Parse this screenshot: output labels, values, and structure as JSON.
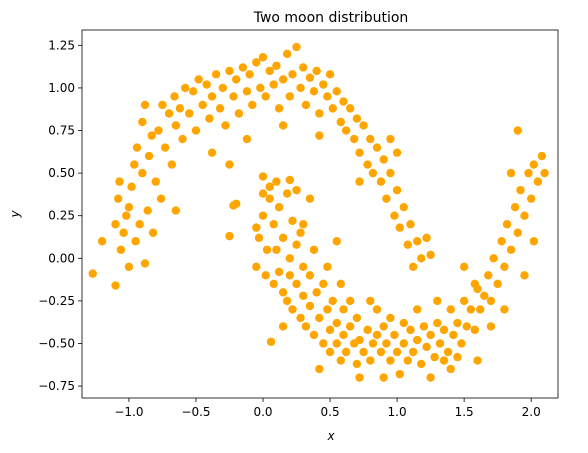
{
  "chart_data": {
    "type": "scatter",
    "title": "Two moon distribution",
    "xlabel": "x",
    "ylabel": "y",
    "xlim": [
      -1.35,
      2.2
    ],
    "ylim": [
      -0.82,
      1.34
    ],
    "xticks": [
      -1.0,
      -0.5,
      0.0,
      0.5,
      1.0,
      1.5,
      2.0
    ],
    "xtick_labels": [
      "−1.0",
      "−0.5",
      "0.0",
      "0.5",
      "1.0",
      "1.5",
      "2.0"
    ],
    "yticks": [
      -0.75,
      -0.5,
      -0.25,
      0.0,
      0.25,
      0.5,
      0.75,
      1.0,
      1.25
    ],
    "ytick_labels": [
      "−0.75",
      "−0.50",
      "−0.25",
      "0.00",
      "0.25",
      "0.50",
      "0.75",
      "1.00",
      "1.25"
    ],
    "grid": false,
    "point_color": "#ffa500",
    "series": [
      {
        "points": [
          [
            -1.27,
            -0.09
          ],
          [
            -1.2,
            0.1
          ],
          [
            -1.1,
            -0.16
          ],
          [
            -1.1,
            0.2
          ],
          [
            -1.08,
            0.35
          ],
          [
            -1.07,
            0.45
          ],
          [
            -1.06,
            0.05
          ],
          [
            -1.04,
            0.15
          ],
          [
            -1.02,
            0.25
          ],
          [
            -1.0,
            -0.05
          ],
          [
            -1.0,
            0.3
          ],
          [
            -0.98,
            0.42
          ],
          [
            -0.96,
            0.55
          ],
          [
            -0.95,
            0.1
          ],
          [
            -0.94,
            0.65
          ],
          [
            -0.92,
            0.2
          ],
          [
            -0.9,
            0.8
          ],
          [
            -0.9,
            0.5
          ],
          [
            -0.88,
            0.9
          ],
          [
            -0.88,
            -0.03
          ],
          [
            -0.86,
            0.28
          ],
          [
            -0.85,
            0.6
          ],
          [
            -0.83,
            0.72
          ],
          [
            -0.82,
            0.15
          ],
          [
            -0.8,
            0.45
          ],
          [
            -0.78,
            0.75
          ],
          [
            -0.76,
            0.35
          ],
          [
            -0.75,
            0.9
          ],
          [
            -0.73,
            0.65
          ],
          [
            -0.7,
            0.85
          ],
          [
            -0.68,
            0.55
          ],
          [
            -0.66,
            0.95
          ],
          [
            -0.65,
            0.78
          ],
          [
            -0.62,
            0.88
          ],
          [
            -0.6,
            0.7
          ],
          [
            -0.58,
            1.0
          ],
          [
            -0.55,
            0.85
          ],
          [
            -0.52,
            0.98
          ],
          [
            -0.5,
            0.75
          ],
          [
            -0.48,
            1.05
          ],
          [
            -0.45,
            0.9
          ],
          [
            -0.42,
            1.02
          ],
          [
            -0.4,
            0.82
          ],
          [
            -0.38,
            0.95
          ],
          [
            -0.35,
            1.08
          ],
          [
            -0.32,
            0.88
          ],
          [
            -0.3,
            1.0
          ],
          [
            -0.28,
            0.78
          ],
          [
            -0.25,
            1.1
          ],
          [
            -0.22,
            0.95
          ],
          [
            -0.2,
            1.05
          ],
          [
            -0.18,
            0.85
          ],
          [
            -0.15,
            1.12
          ],
          [
            -0.12,
            0.98
          ],
          [
            -0.1,
            1.08
          ],
          [
            -0.08,
            0.9
          ],
          [
            -0.05,
            1.15
          ],
          [
            -0.02,
            1.0
          ],
          [
            0.0,
            1.18
          ],
          [
            0.02,
            0.95
          ],
          [
            0.05,
            1.1
          ],
          [
            0.08,
            1.02
          ],
          [
            0.1,
            1.13
          ],
          [
            0.12,
            0.88
          ],
          [
            0.15,
            1.05
          ],
          [
            0.18,
            1.2
          ],
          [
            0.2,
            0.95
          ],
          [
            0.22,
            1.08
          ],
          [
            0.25,
            1.24
          ],
          [
            0.28,
            1.0
          ],
          [
            0.3,
            1.12
          ],
          [
            0.32,
            0.9
          ],
          [
            0.35,
            1.06
          ],
          [
            0.38,
            0.98
          ],
          [
            0.4,
            1.1
          ],
          [
            0.42,
            0.85
          ],
          [
            0.45,
            1.02
          ],
          [
            0.48,
            0.95
          ],
          [
            0.5,
            1.08
          ],
          [
            0.52,
            0.88
          ],
          [
            0.55,
            0.98
          ],
          [
            0.58,
            0.8
          ],
          [
            0.6,
            0.92
          ],
          [
            0.62,
            0.75
          ],
          [
            0.65,
            0.88
          ],
          [
            0.68,
            0.7
          ],
          [
            0.7,
            0.82
          ],
          [
            0.72,
            0.62
          ],
          [
            0.75,
            0.78
          ],
          [
            0.78,
            0.55
          ],
          [
            0.8,
            0.7
          ],
          [
            0.82,
            0.5
          ],
          [
            0.85,
            0.65
          ],
          [
            0.88,
            0.45
          ],
          [
            0.9,
            0.58
          ],
          [
            0.92,
            0.35
          ],
          [
            0.95,
            0.5
          ],
          [
            0.98,
            0.25
          ],
          [
            1.0,
            0.4
          ],
          [
            1.02,
            0.18
          ],
          [
            1.05,
            0.3
          ],
          [
            1.08,
            0.08
          ],
          [
            1.1,
            0.2
          ],
          [
            1.12,
            -0.05
          ],
          [
            1.15,
            0.1
          ],
          [
            1.18,
            0.0
          ],
          [
            -0.65,
            0.28
          ],
          [
            -0.38,
            0.62
          ],
          [
            -0.12,
            0.7
          ],
          [
            0.15,
            0.78
          ],
          [
            0.42,
            0.72
          ],
          [
            0.72,
            0.45
          ],
          [
            1.22,
            0.12
          ],
          [
            1.25,
            0.02
          ],
          [
            -0.25,
            0.55
          ],
          [
            0.95,
            0.7
          ],
          [
            1.0,
            0.62
          ]
        ]
      },
      {
        "points": [
          [
            -0.25,
            0.13
          ],
          [
            -0.22,
            0.31
          ],
          [
            -0.2,
            0.32
          ],
          [
            -0.05,
            -0.05
          ],
          [
            -0.03,
            0.12
          ],
          [
            0.0,
            0.25
          ],
          [
            0.0,
            0.48
          ],
          [
            0.02,
            -0.1
          ],
          [
            0.03,
            0.05
          ],
          [
            0.05,
            0.35
          ],
          [
            0.05,
            0.42
          ],
          [
            0.08,
            -0.15
          ],
          [
            0.08,
            0.2
          ],
          [
            0.1,
            0.45
          ],
          [
            0.1,
            0.05
          ],
          [
            0.12,
            -0.08
          ],
          [
            0.12,
            0.3
          ],
          [
            0.15,
            -0.2
          ],
          [
            0.15,
            0.12
          ],
          [
            0.18,
            -0.25
          ],
          [
            0.18,
            0.38
          ],
          [
            0.2,
            0.0
          ],
          [
            0.2,
            -0.1
          ],
          [
            0.22,
            0.22
          ],
          [
            0.22,
            -0.3
          ],
          [
            0.25,
            -0.15
          ],
          [
            0.25,
            0.08
          ],
          [
            0.28,
            -0.35
          ],
          [
            0.28,
            0.15
          ],
          [
            0.3,
            -0.05
          ],
          [
            0.3,
            -0.22
          ],
          [
            0.32,
            -0.4
          ],
          [
            0.35,
            -0.1
          ],
          [
            0.35,
            -0.28
          ],
          [
            0.38,
            -0.45
          ],
          [
            0.38,
            0.05
          ],
          [
            0.4,
            -0.2
          ],
          [
            0.42,
            -0.35
          ],
          [
            0.45,
            -0.5
          ],
          [
            0.45,
            -0.15
          ],
          [
            0.48,
            -0.3
          ],
          [
            0.5,
            -0.42
          ],
          [
            0.5,
            -0.55
          ],
          [
            0.52,
            -0.25
          ],
          [
            0.55,
            -0.38
          ],
          [
            0.55,
            -0.5
          ],
          [
            0.58,
            -0.6
          ],
          [
            0.6,
            -0.3
          ],
          [
            0.6,
            -0.45
          ],
          [
            0.62,
            -0.55
          ],
          [
            0.65,
            -0.4
          ],
          [
            0.68,
            -0.5
          ],
          [
            0.7,
            -0.62
          ],
          [
            0.7,
            -0.35
          ],
          [
            0.72,
            -0.48
          ],
          [
            0.75,
            -0.55
          ],
          [
            0.78,
            -0.42
          ],
          [
            0.8,
            -0.6
          ],
          [
            0.82,
            -0.5
          ],
          [
            0.85,
            -0.45
          ],
          [
            0.88,
            -0.55
          ],
          [
            0.9,
            -0.7
          ],
          [
            0.9,
            -0.4
          ],
          [
            0.92,
            -0.5
          ],
          [
            0.95,
            -0.6
          ],
          [
            0.98,
            -0.45
          ],
          [
            1.0,
            -0.55
          ],
          [
            1.02,
            -0.68
          ],
          [
            1.05,
            -0.5
          ],
          [
            1.08,
            -0.6
          ],
          [
            1.1,
            -0.42
          ],
          [
            1.12,
            -0.55
          ],
          [
            1.15,
            -0.48
          ],
          [
            1.18,
            -0.62
          ],
          [
            1.2,
            -0.4
          ],
          [
            1.22,
            -0.52
          ],
          [
            1.25,
            -0.45
          ],
          [
            1.28,
            -0.58
          ],
          [
            1.3,
            -0.38
          ],
          [
            1.32,
            -0.5
          ],
          [
            1.35,
            -0.42
          ],
          [
            1.38,
            -0.55
          ],
          [
            1.4,
            -0.3
          ],
          [
            1.42,
            -0.45
          ],
          [
            1.45,
            -0.38
          ],
          [
            1.48,
            -0.5
          ],
          [
            1.5,
            -0.25
          ],
          [
            1.52,
            -0.4
          ],
          [
            1.55,
            -0.3
          ],
          [
            1.58,
            -0.42
          ],
          [
            1.6,
            -0.18
          ],
          [
            1.62,
            -0.3
          ],
          [
            1.65,
            -0.22
          ],
          [
            1.68,
            -0.1
          ],
          [
            1.7,
            -0.25
          ],
          [
            1.72,
            0.0
          ],
          [
            1.75,
            -0.15
          ],
          [
            1.78,
            0.1
          ],
          [
            1.8,
            -0.05
          ],
          [
            1.82,
            0.2
          ],
          [
            1.85,
            0.05
          ],
          [
            1.88,
            0.3
          ],
          [
            1.9,
            0.15
          ],
          [
            1.92,
            0.4
          ],
          [
            1.95,
            0.25
          ],
          [
            1.98,
            0.5
          ],
          [
            2.0,
            0.35
          ],
          [
            2.02,
            0.55
          ],
          [
            2.05,
            0.45
          ],
          [
            2.08,
            0.6
          ],
          [
            2.1,
            0.5
          ],
          [
            1.9,
            0.75
          ],
          [
            0.55,
            0.1
          ],
          [
            0.3,
            0.2
          ],
          [
            0.06,
            -0.49
          ],
          [
            0.35,
            0.35
          ],
          [
            0.42,
            -0.65
          ],
          [
            0.72,
            -0.7
          ],
          [
            1.25,
            -0.7
          ],
          [
            1.6,
            -0.6
          ],
          [
            1.4,
            -0.65
          ],
          [
            1.85,
            0.5
          ],
          [
            1.95,
            -0.1
          ],
          [
            2.02,
            0.1
          ],
          [
            1.5,
            -0.05
          ],
          [
            0.65,
            -0.25
          ],
          [
            0.15,
            -0.4
          ],
          [
            0.25,
            0.4
          ],
          [
            -0.05,
            0.18
          ],
          [
            0.0,
            0.38
          ],
          [
            0.2,
            0.46
          ],
          [
            1.15,
            -0.3
          ],
          [
            0.85,
            -0.3
          ],
          [
            0.95,
            -0.35
          ],
          [
            1.05,
            -0.38
          ],
          [
            0.8,
            -0.25
          ],
          [
            1.3,
            -0.25
          ],
          [
            1.7,
            -0.4
          ],
          [
            1.8,
            -0.3
          ],
          [
            1.58,
            -0.15
          ],
          [
            1.35,
            -0.6
          ],
          [
            1.45,
            -0.58
          ],
          [
            0.58,
            -0.15
          ],
          [
            0.48,
            -0.05
          ]
        ]
      }
    ]
  }
}
